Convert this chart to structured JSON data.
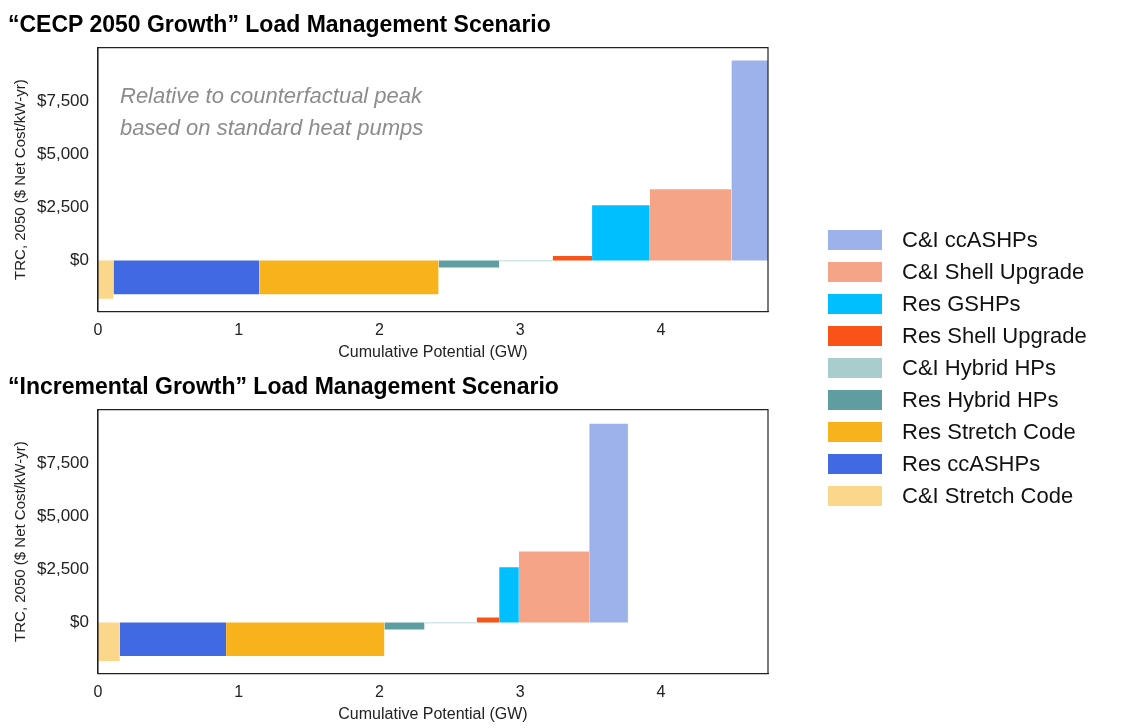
{
  "chart_data": [
    {
      "type": "area",
      "title": "“CECP 2050 Growth” Load Management Scenario",
      "xlabel": "Cumulative Potential (GW)",
      "ylabel": "TRC, 2050 ($ Net Cost/kW-yr)",
      "xlim": [
        0,
        4.76
      ],
      "xticks": [
        0,
        1,
        2,
        3,
        4
      ],
      "ylim": [
        -2400,
        10000
      ],
      "yticks": [
        {
          "value": 0,
          "label": "$0"
        },
        {
          "value": 2500,
          "label": "$2,500"
        },
        {
          "value": 5000,
          "label": "$5,000"
        },
        {
          "value": 7500,
          "label": "$7,500"
        }
      ],
      "grid": false,
      "legend": "right",
      "annotations": [
        "Relative to counterfactual peak based on standard heat pumps"
      ],
      "series": [
        {
          "name": "C&I ccASHPs",
          "color": "#9db1ea",
          "x": [
            4.5,
            4.76
          ],
          "values": [
            9390,
            9390
          ]
        },
        {
          "name": "C&I Shell Upgrade",
          "color": "#f6a487",
          "x": [
            3.92,
            4.5
          ],
          "values": [
            3350,
            3350
          ]
        },
        {
          "name": "Res GSHPs",
          "color": "#00bfff",
          "x": [
            3.51,
            3.92
          ],
          "values": [
            2600,
            2600
          ]
        },
        {
          "name": "Res Shell Upgrade",
          "color": "#f95318",
          "x": [
            3.23,
            3.51
          ],
          "values": [
            210,
            210
          ]
        },
        {
          "name": "C&I Hybrid HPs",
          "color": "#a9cccc",
          "x": [
            2.85,
            3.23
          ],
          "values": [
            -40,
            -40
          ]
        },
        {
          "name": "Res Hybrid HPs",
          "color": "#5f9ea0",
          "x": [
            2.42,
            2.85
          ],
          "values": [
            -330,
            -330
          ]
        },
        {
          "name": "Res Stretch Code",
          "color": "#f7b21c",
          "x": [
            1.145,
            2.42
          ],
          "values": [
            -1580,
            -1580
          ]
        },
        {
          "name": "Res ccASHPs",
          "color": "#4169e1",
          "x": [
            0.11,
            1.145
          ],
          "values": [
            -1580,
            -1580
          ]
        },
        {
          "name": "C&I Stretch Code",
          "color": "#fad78a",
          "x": [
            0,
            0.11
          ],
          "values": [
            -1800,
            -1800
          ]
        }
      ]
    },
    {
      "type": "area",
      "title": "“Incremental Growth” Load Management Scenario",
      "xlabel": "Cumulative Potential (GW)",
      "ylabel": "TRC, 2050 ($ Net Cost/kW-yr)",
      "xlim": [
        0,
        4.76
      ],
      "xticks": [
        0,
        1,
        2,
        3,
        4
      ],
      "ylim": [
        -2400,
        10000
      ],
      "yticks": [
        {
          "value": 0,
          "label": "$0"
        },
        {
          "value": 2500,
          "label": "$2,500"
        },
        {
          "value": 5000,
          "label": "$5,000"
        },
        {
          "value": 7500,
          "label": "$7,500"
        }
      ],
      "grid": false,
      "series": [
        {
          "color": "#9db1ea",
          "x": [
            3.49,
            3.765
          ],
          "values": [
            9340,
            9340
          ]
        },
        {
          "color": "#f6a487",
          "x": [
            2.99,
            3.49
          ],
          "values": [
            3340,
            3340
          ]
        },
        {
          "color": "#00bfff",
          "x": [
            2.85,
            2.99
          ],
          "values": [
            2590,
            2590
          ]
        },
        {
          "color": "#f95318",
          "x": [
            2.69,
            2.85
          ],
          "values": [
            235,
            235
          ]
        },
        {
          "color": "#a9cccc",
          "x": [
            2.32,
            2.69
          ],
          "values": [
            -40,
            -40
          ]
        },
        {
          "color": "#5f9ea0",
          "x": [
            2.035,
            2.32
          ],
          "values": [
            -330,
            -330
          ]
        },
        {
          "color": "#f7b21c",
          "x": [
            0.91,
            2.035
          ],
          "values": [
            -1575,
            -1575
          ]
        },
        {
          "color": "#4169e1",
          "x": [
            0.155,
            0.91
          ],
          "values": [
            -1575,
            -1575
          ]
        },
        {
          "color": "#fad78a",
          "x": [
            0,
            0.155
          ],
          "values": [
            -1810,
            -1810
          ]
        }
      ]
    }
  ]
}
